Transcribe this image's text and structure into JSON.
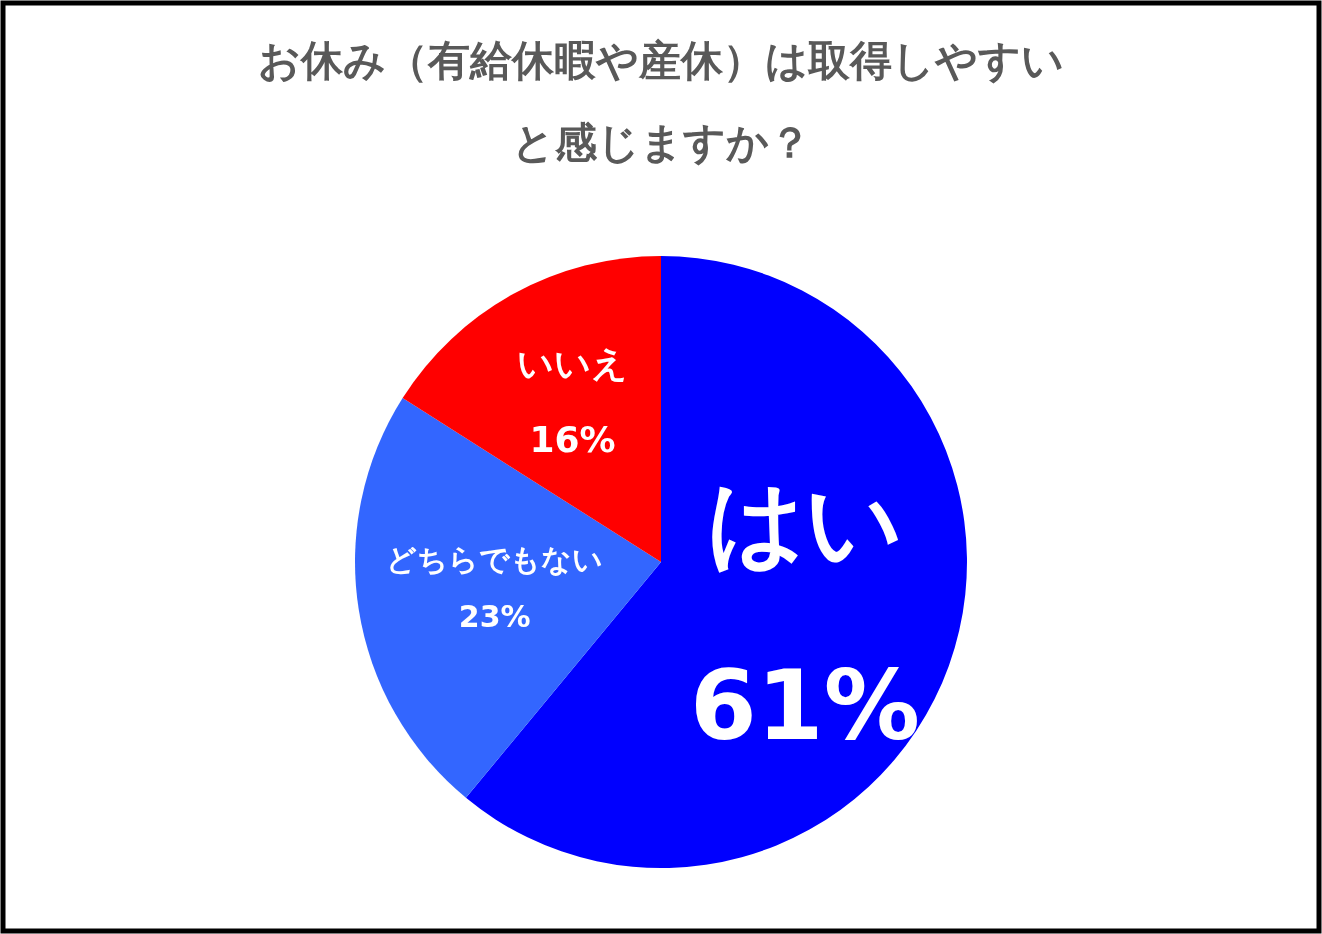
{
  "chart_data": {
    "type": "pie",
    "title": "お休み（有給休暇や産休）は取得しやすいと感じますか？",
    "categories": [
      "はい",
      "どちらでもない",
      "いいえ"
    ],
    "values": [
      61,
      23,
      16
    ],
    "colors": [
      "#0000ff",
      "#3366ff",
      "#ff0000"
    ],
    "value_labels": [
      "61%",
      "23%",
      "16%"
    ]
  }
}
